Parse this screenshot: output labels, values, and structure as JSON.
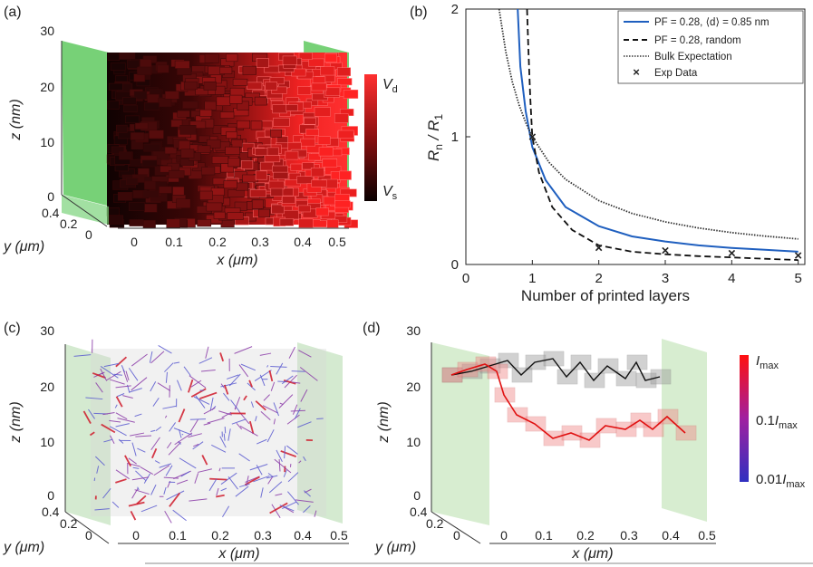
{
  "panel_labels": {
    "a": "(a)",
    "b": "(b)",
    "c": "(c)",
    "d": "(d)"
  },
  "panel_a": {
    "z_label": "z (nm)",
    "y_label": "y (μm)",
    "x_label": "x (μm)",
    "z_ticks": [
      "0",
      "10",
      "20",
      "30"
    ],
    "y_ticks": [
      "0",
      "0.2",
      "0.4"
    ],
    "x_ticks": [
      "0",
      "0.1",
      "0.2",
      "0.3",
      "0.4",
      "0.5"
    ],
    "colorbar_top": "V",
    "colorbar_top_sub": "d",
    "colorbar_bottom": "V",
    "colorbar_bottom_sub": "s",
    "colors": {
      "electrode": "#5fc95f",
      "low": "#1a0505",
      "high": "#ff2a2a"
    }
  },
  "panel_c": {
    "z_label": "z (nm)",
    "y_label": "y (μm)",
    "x_label": "x (μm)",
    "z_ticks": [
      "0",
      "10",
      "20",
      "30"
    ],
    "y_ticks": [
      "0",
      "0.2",
      "0.4"
    ],
    "x_ticks": [
      "0",
      "0.1",
      "0.2",
      "0.3",
      "0.4",
      "0.5"
    ]
  },
  "panel_d": {
    "z_label": "z (nm)",
    "y_label": "y (μm)",
    "x_label": "x (μm)",
    "z_ticks": [
      "0",
      "10",
      "20",
      "30"
    ],
    "y_ticks": [
      "0",
      "0.2",
      "0.4"
    ],
    "x_ticks": [
      "0",
      "0.1",
      "0.2",
      "0.3",
      "0.4",
      "0.5"
    ],
    "colorbar_labels": [
      "Imax",
      "0.1Imax",
      "0.01Imax"
    ],
    "colorbar_label_parts": [
      {
        "prefix": "",
        "main": "I",
        "sub": "max"
      },
      {
        "prefix": "0.1",
        "main": "I",
        "sub": "max"
      },
      {
        "prefix": "0.01",
        "main": "I",
        "sub": "max"
      }
    ],
    "colors": {
      "high": "#e01010",
      "low": "#3a3ab8"
    }
  },
  "chart_data": [
    {
      "type": "line",
      "panel": "(b)",
      "xlabel": "Number of printed layers",
      "ylabel": "Rn / R1",
      "ylabel_parts": {
        "n": "R",
        "n_sub": "n",
        "sep": " / ",
        "d": "R",
        "d_sub": "1"
      },
      "xlim": [
        0,
        5.1
      ],
      "ylim": [
        0,
        2
      ],
      "x_ticks": [
        0,
        1,
        2,
        3,
        4,
        5
      ],
      "y_ticks": [
        0,
        1,
        2
      ],
      "legend_position": "top-right",
      "series": [
        {
          "name": "PF = 0.28, ⟨d⟩ = 0.85 nm",
          "style": "solid",
          "color": "#1f5fbf",
          "x": [
            0.78,
            0.82,
            0.9,
            1.0,
            1.2,
            1.5,
            2.0,
            2.5,
            3.0,
            3.5,
            4.0,
            4.5,
            5.0
          ],
          "y": [
            2.0,
            1.55,
            1.2,
            0.92,
            0.66,
            0.45,
            0.3,
            0.22,
            0.18,
            0.15,
            0.13,
            0.115,
            0.1
          ]
        },
        {
          "name": "PF = 0.28, random",
          "style": "dashed",
          "color": "#111111",
          "x": [
            0.92,
            0.94,
            0.97,
            1.0,
            1.1,
            1.3,
            1.6,
            2.0,
            2.5,
            3.0,
            3.5,
            4.0,
            4.5,
            5.0
          ],
          "y": [
            2.0,
            1.7,
            1.3,
            1.0,
            0.72,
            0.45,
            0.27,
            0.15,
            0.1,
            0.08,
            0.065,
            0.055,
            0.045,
            0.035
          ]
        },
        {
          "name": "Bulk Expectation",
          "style": "dotted",
          "color": "#333333",
          "x": [
            0.5,
            0.6,
            0.7,
            0.8,
            0.9,
            1.0,
            1.25,
            1.5,
            2.0,
            2.5,
            3.0,
            3.5,
            4.0,
            4.5,
            5.0
          ],
          "y": [
            2.0,
            1.6667,
            1.4286,
            1.25,
            1.1111,
            1.0,
            0.8,
            0.6667,
            0.5,
            0.4,
            0.3333,
            0.2857,
            0.25,
            0.2222,
            0.2
          ]
        },
        {
          "name": "Exp Data",
          "style": "marker-x",
          "color": "#111111",
          "x": [
            1,
            2,
            3,
            4,
            5
          ],
          "y": [
            1.0,
            0.13,
            0.11,
            0.09,
            0.07
          ]
        }
      ]
    }
  ]
}
